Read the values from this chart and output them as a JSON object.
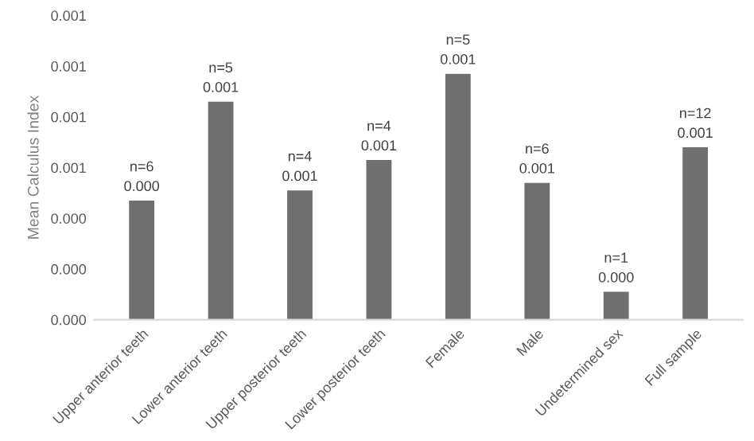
{
  "chart_data": {
    "type": "bar",
    "ylabel": "Mean Calculus Index",
    "categories": [
      "Upper anterior teeth",
      "Lower anterior teeth",
      "Upper posterior teeth",
      "Lower posterior teeth",
      "Female",
      "Male",
      "Undetermined sex",
      "Full sample"
    ],
    "values": [
      0.00047,
      0.00086,
      0.00051,
      0.00063,
      0.00097,
      0.00054,
      0.00011,
      0.00068
    ],
    "value_labels": [
      "n=6\n0.000",
      "n=5\n0.001",
      "n=4\n0.001",
      "n=4\n0.001",
      "n=5\n0.001",
      "n=6\n0.001",
      "n=1\n0.000",
      "n=12\n0.001"
    ],
    "color": "#6f6f6f",
    "ylim": [
      0,
      0.0012
    ],
    "yticks": [
      {
        "value": 0,
        "label": "0.000"
      },
      {
        "value": 0.0002,
        "label": "0.000"
      },
      {
        "value": 0.0004,
        "label": "0.000"
      },
      {
        "value": 0.0006,
        "label": "0.001"
      },
      {
        "value": 0.0008,
        "label": "0.001"
      },
      {
        "value": 0.001,
        "label": "0.001"
      },
      {
        "value": 0.0012,
        "label": "0.001"
      }
    ],
    "grid": false,
    "legend": false
  }
}
